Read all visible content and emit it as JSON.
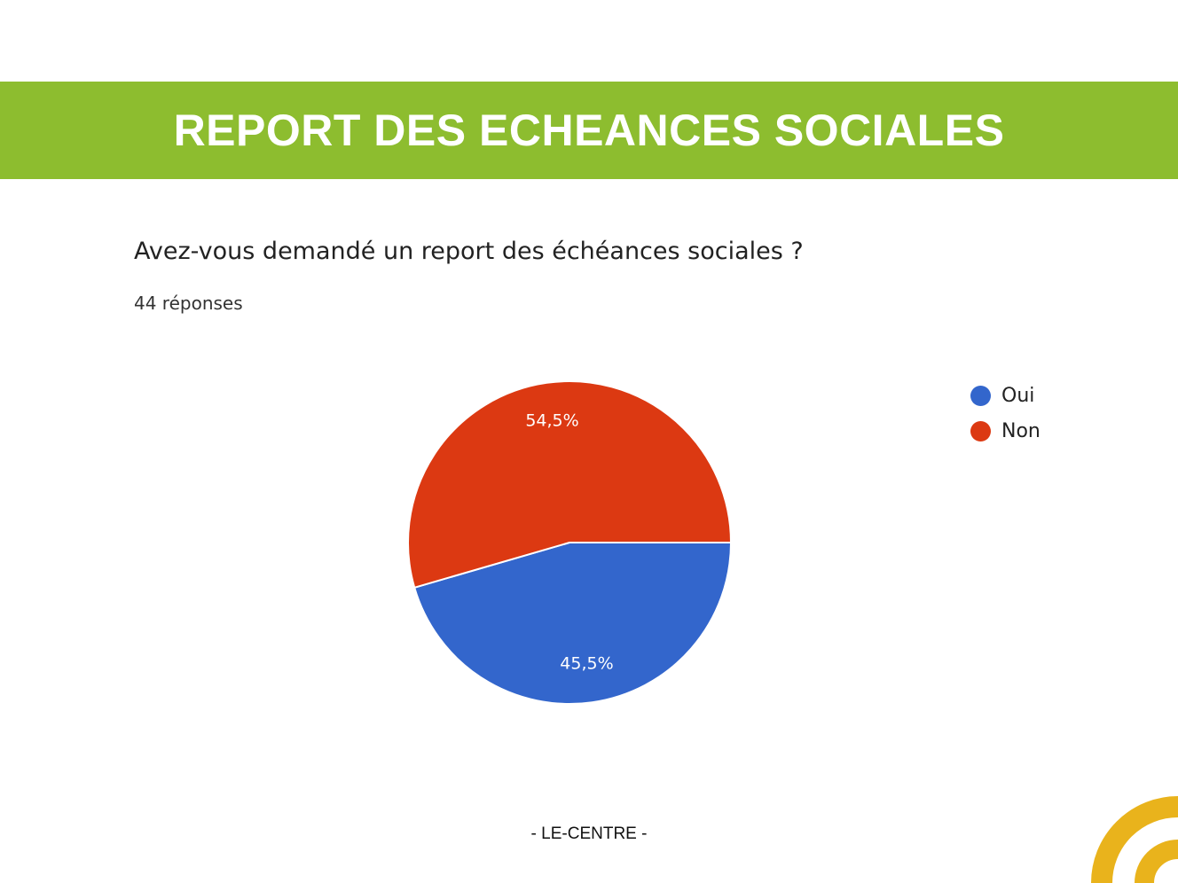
{
  "banner": {
    "title": "REPORT DES ECHEANCES SOCIALES",
    "color": "#8dbd2f"
  },
  "question": "Avez-vous demandé un report des échéances sociales ?",
  "responses_text": "44 réponses",
  "footer": "- LE-CENTRE -",
  "logo": {
    "icon": "signal-arc-logo",
    "color": "#e9b31c"
  },
  "chart_data": {
    "type": "pie",
    "categories": [
      "Oui",
      "Non"
    ],
    "values": [
      45.5,
      54.5
    ],
    "labels": [
      "45,5%",
      "54,5%"
    ],
    "colors": [
      "#3366cc",
      "#dc3912"
    ],
    "legend_position": "top-right",
    "start_angle": "3 o'clock, clockwise"
  }
}
